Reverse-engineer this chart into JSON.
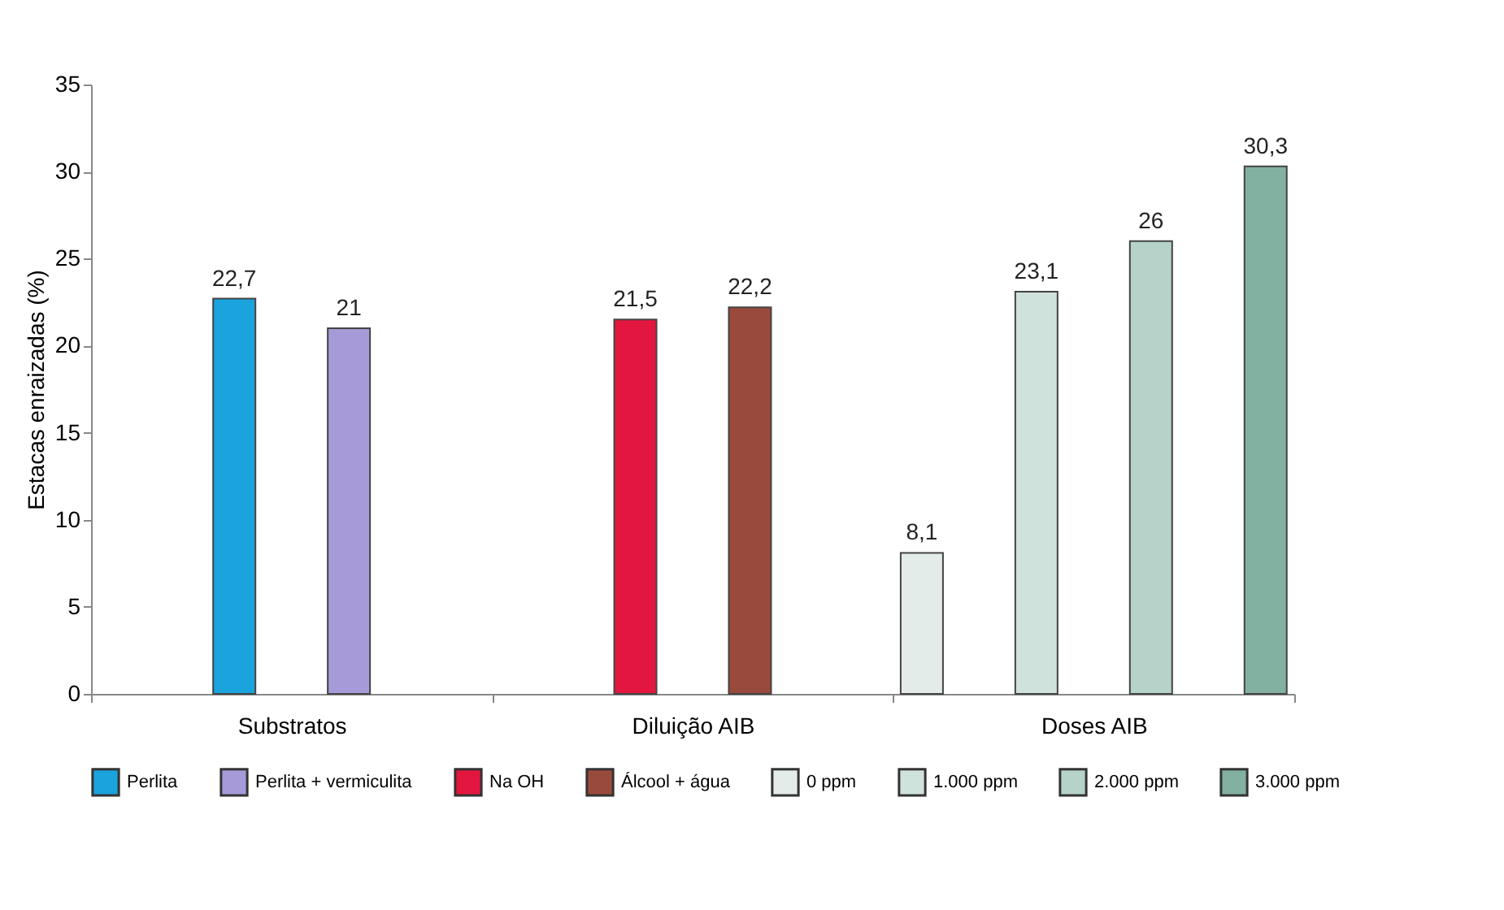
{
  "chart_data": {
    "type": "bar",
    "ylabel": "Estacas enraizadas  (%)",
    "categories": [
      "Substratos",
      "Diluição AIB",
      "Doses AIB"
    ],
    "series": [
      {
        "name": "Perlita",
        "color": "#1aa3dc",
        "values": [
          22.7,
          null,
          null
        ],
        "value_labels": [
          "22,7",
          null,
          null
        ]
      },
      {
        "name": "Perlita + vermiculita",
        "color": "#a79ad8",
        "values": [
          21,
          null,
          null
        ],
        "value_labels": [
          "21",
          null,
          null
        ]
      },
      {
        "name": "Na OH",
        "color": "#e3163f",
        "values": [
          null,
          21.5,
          null
        ],
        "value_labels": [
          null,
          "21,5",
          null
        ]
      },
      {
        "name": "Álcool + água",
        "color": "#9a4a3c",
        "values": [
          null,
          22.2,
          null
        ],
        "value_labels": [
          null,
          "22,2",
          null
        ]
      },
      {
        "name": "0 ppm",
        "color": "#e4ece9",
        "values": [
          null,
          null,
          8.1
        ],
        "value_labels": [
          null,
          null,
          "8,1"
        ]
      },
      {
        "name": "1.000 ppm",
        "color": "#cfe2db",
        "values": [
          null,
          null,
          23.1
        ],
        "value_labels": [
          null,
          null,
          "23,1"
        ]
      },
      {
        "name": "2.000 ppm",
        "color": "#b5d3c8",
        "values": [
          null,
          null,
          26
        ],
        "value_labels": [
          null,
          null,
          "26"
        ]
      },
      {
        "name": "3.000 ppm",
        "color": "#82b0a1",
        "values": [
          null,
          null,
          30.3
        ],
        "value_labels": [
          null,
          null,
          "30,3"
        ]
      }
    ],
    "ylim": [
      0,
      35
    ],
    "yticks": [
      0,
      5,
      10,
      15,
      20,
      25,
      30,
      35
    ],
    "legend": "bottom",
    "grid": false
  }
}
